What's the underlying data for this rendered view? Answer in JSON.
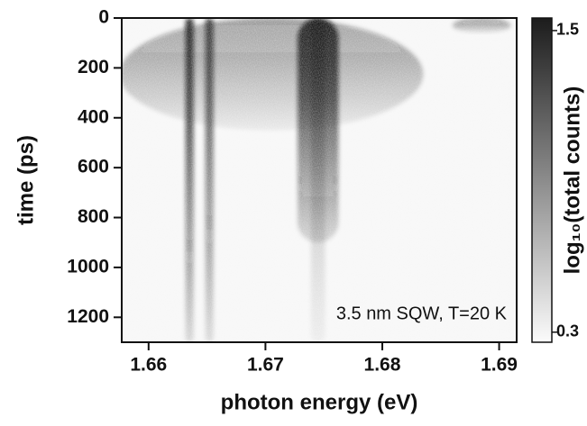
{
  "chart_data": {
    "type": "heatmap",
    "xlabel": "photon energy (eV)",
    "ylabel": "time (ps)",
    "colorbar_label": "log₁₀(total counts)",
    "annotation": "3.5 nm SQW, T=20 K",
    "xlim": [
      1.6577,
      1.6915
    ],
    "xticks": [
      1.66,
      1.67,
      1.68,
      1.69
    ],
    "ylim": [
      0,
      1300
    ],
    "yticks": [
      0,
      200,
      400,
      600,
      800,
      1000,
      1200
    ],
    "y_inverted": true,
    "zlim": [
      0.26,
      1.55
    ],
    "zticks": [
      0.3,
      1.5
    ],
    "features": [
      {
        "x": 1.6705,
        "width": 0.026,
        "t0": 0,
        "t1": 450,
        "peak": 0.75
      },
      {
        "x": 1.6635,
        "width": 0.0007,
        "t0": 0,
        "t1": 1300,
        "peak": 1.35
      },
      {
        "x": 1.6652,
        "width": 0.0007,
        "t0": 0,
        "t1": 1300,
        "peak": 1.2
      },
      {
        "x": 1.6745,
        "width": 0.0035,
        "t0": 0,
        "t1": 900,
        "peak": 1.4
      },
      {
        "x": 1.6745,
        "width": 0.0012,
        "t0": 0,
        "t1": 1300,
        "peak": 0.6
      },
      {
        "x": 1.6885,
        "width": 0.005,
        "t0": 0,
        "t1": 60,
        "peak": 0.8
      }
    ]
  }
}
